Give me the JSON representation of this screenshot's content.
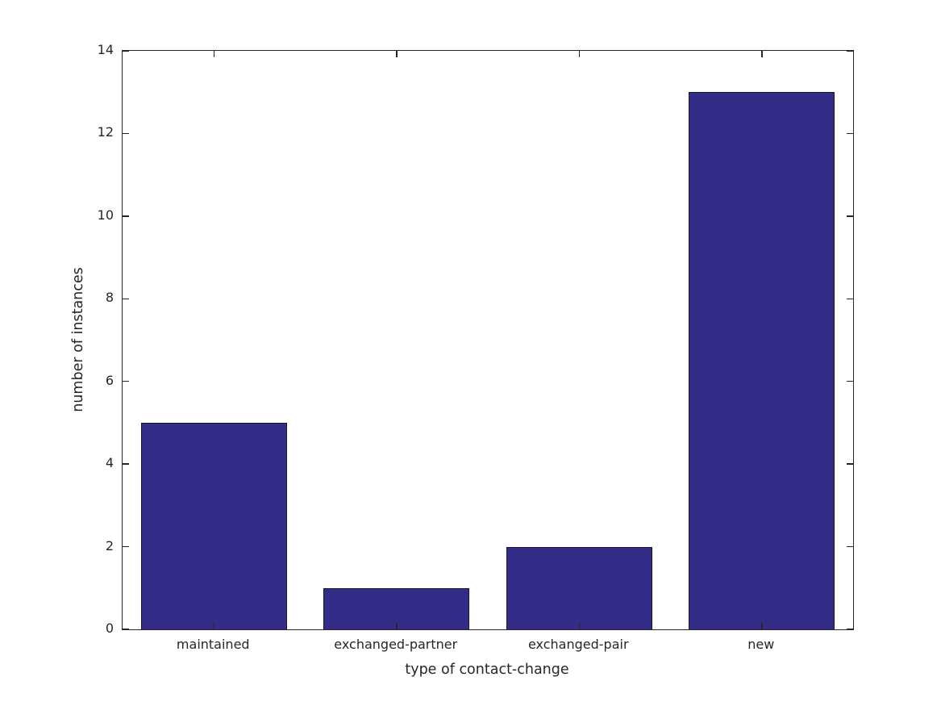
{
  "chart_data": {
    "type": "bar",
    "categories": [
      "maintained",
      "exchanged-partner",
      "exchanged-pair",
      "new"
    ],
    "values": [
      5,
      1,
      2,
      13
    ],
    "title": "",
    "xlabel": "type of contact-change",
    "ylabel": "number of instances",
    "ylim": [
      0,
      14
    ],
    "yticks": [
      0,
      2,
      4,
      6,
      8,
      10,
      12,
      14
    ],
    "bar_width_fraction": 0.8,
    "bar_color": "#342d87",
    "bar_edge_color": "#141432",
    "axis_color": "#262626",
    "grid": false,
    "legend": null,
    "background_color": "#ffffff"
  }
}
